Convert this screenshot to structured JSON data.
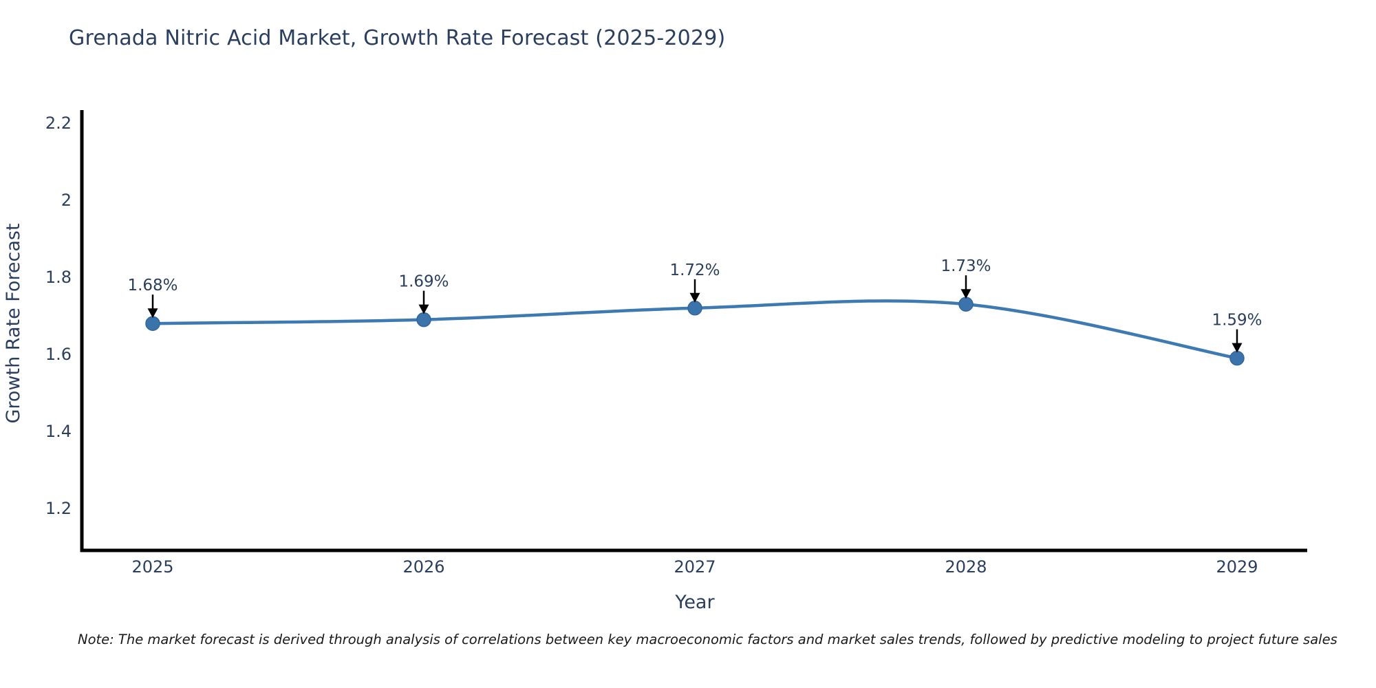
{
  "title": "Grenada Nitric Acid Market, Growth Rate Forecast (2025-2029)",
  "note": "Note: The market forecast is derived through analysis of correlations between key macroeconomic factors and market sales trends, followed by predictive modeling to project future sales",
  "colors": {
    "title_text": "#2a3f5f",
    "axis_text": "#2a3f5f",
    "spine": "#000000",
    "line": "#3d7ab2",
    "marker": "#3a74ab",
    "marker_edge": "#32669c",
    "arrow": "#000000",
    "note_text": "#1a1a1a",
    "background": "#ffffff"
  },
  "chart_data": {
    "type": "line",
    "title": "Grenada Nitric Acid Market, Growth Rate Forecast (2025-2029)",
    "xlabel": "Year",
    "ylabel": "Growth Rate Forecast",
    "x": [
      2025,
      2026,
      2027,
      2028,
      2029
    ],
    "series": [
      {
        "name": "Growth Rate Forecast",
        "values": [
          1.68,
          1.69,
          1.72,
          1.73,
          1.59
        ],
        "point_labels": [
          "1.68%",
          "1.69%",
          "1.72%",
          "1.73%",
          "1.59%"
        ]
      }
    ],
    "yticks": [
      2.2,
      2.0,
      1.8,
      1.6,
      1.4,
      1.2
    ],
    "ytick_labels": [
      "2.2",
      "2",
      "1.8",
      "1.6",
      "1.4",
      "1.2"
    ],
    "ylim": [
      1.0875,
      2.23
    ],
    "grid": false,
    "legend_position": "none",
    "line_smoothing": "spline",
    "marker_style": "circle",
    "annotations": "value labels with down arrows above each point"
  }
}
